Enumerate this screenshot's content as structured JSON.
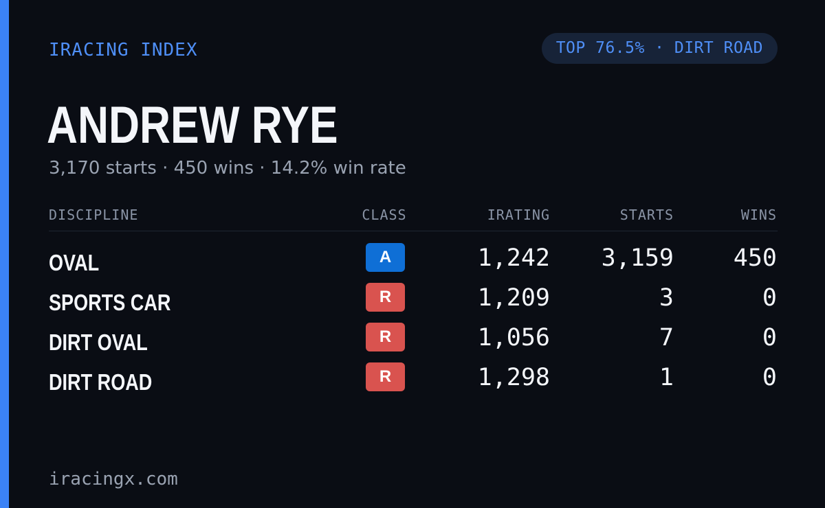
{
  "brand": "IRACING INDEX",
  "rank_pill": "TOP 76.5% · DIRT ROAD",
  "driver": {
    "name": "ANDREW RYE",
    "summary": "3,170 starts · 450 wins · 14.2% win rate"
  },
  "table": {
    "headers": {
      "discipline": "DISCIPLINE",
      "class": "CLASS",
      "irating": "IRATING",
      "starts": "STARTS",
      "wins": "WINS"
    },
    "rows": [
      {
        "discipline": "OVAL",
        "class": "A",
        "class_color": "#0f6fd6",
        "irating": "1,242",
        "starts": "3,159",
        "wins": "450"
      },
      {
        "discipline": "SPORTS CAR",
        "class": "R",
        "class_color": "#d9534f",
        "irating": "1,209",
        "starts": "3",
        "wins": "0"
      },
      {
        "discipline": "DIRT OVAL",
        "class": "R",
        "class_color": "#d9534f",
        "irating": "1,056",
        "starts": "7",
        "wins": "0"
      },
      {
        "discipline": "DIRT ROAD",
        "class": "R",
        "class_color": "#d9534f",
        "irating": "1,298",
        "starts": "1",
        "wins": "0"
      }
    ]
  },
  "footer": "iracingx.com",
  "colors": {
    "background": "#0a0d14",
    "accent": "#3b82f6",
    "brand_text": "#4f8ff7",
    "pill_bg": "#172338"
  }
}
